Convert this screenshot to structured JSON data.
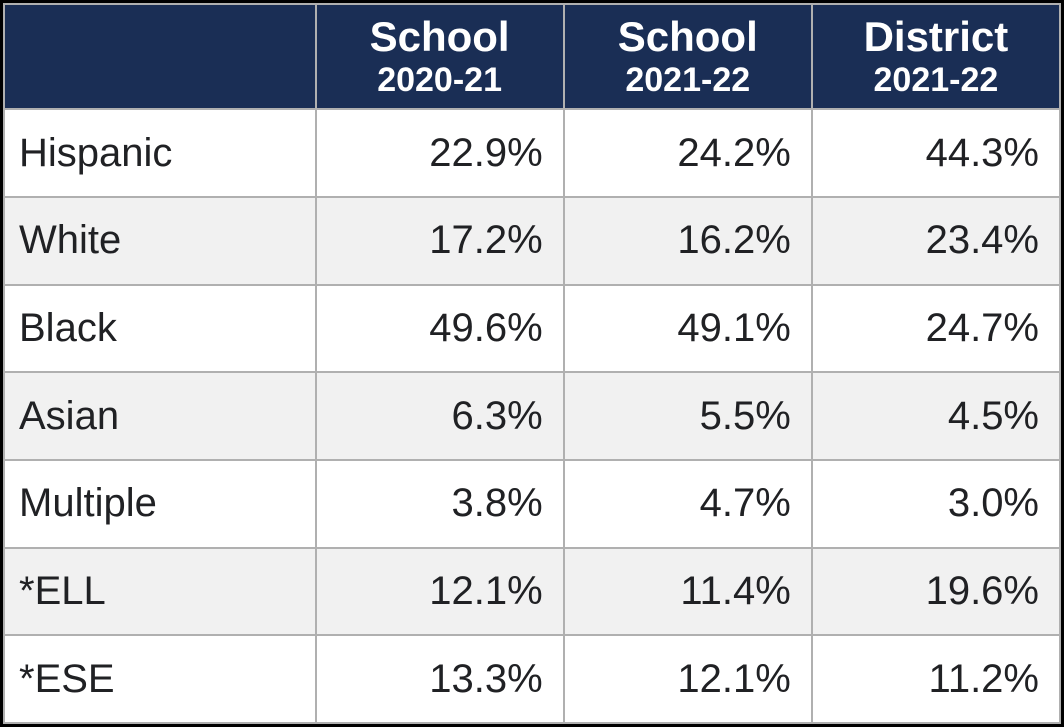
{
  "table": {
    "type": "table",
    "header_bg": "#1a2e55",
    "header_fg": "#ffffff",
    "border_color": "#b0b0b0",
    "outer_border_color": "#000000",
    "row_bg_even": "#ffffff",
    "row_bg_odd": "#f1f1f1",
    "text_color": "#202124",
    "header_top_fontsize": 42,
    "header_sub_fontsize": 34,
    "cell_fontsize": 40,
    "col_widths_pct": [
      29.5,
      23.5,
      23.5,
      23.5
    ],
    "columns": [
      {
        "top": "",
        "sub": ""
      },
      {
        "top": "School",
        "sub": "2020-21"
      },
      {
        "top": "School",
        "sub": "2021-22"
      },
      {
        "top": "District",
        "sub": "2021-22"
      }
    ],
    "rows": [
      {
        "label": "Hispanic",
        "values": [
          "22.9%",
          "24.2%",
          "44.3%"
        ]
      },
      {
        "label": "White",
        "values": [
          "17.2%",
          "16.2%",
          "23.4%"
        ]
      },
      {
        "label": "Black",
        "values": [
          "49.6%",
          "49.1%",
          "24.7%"
        ]
      },
      {
        "label": "Asian",
        "values": [
          "6.3%",
          "5.5%",
          "4.5%"
        ]
      },
      {
        "label": "Multiple",
        "values": [
          "3.8%",
          "4.7%",
          "3.0%"
        ]
      },
      {
        "label": "*ELL",
        "values": [
          "12.1%",
          "11.4%",
          "19.6%"
        ]
      },
      {
        "label": "*ESE",
        "values": [
          "13.3%",
          "12.1%",
          "11.2%"
        ]
      }
    ]
  }
}
